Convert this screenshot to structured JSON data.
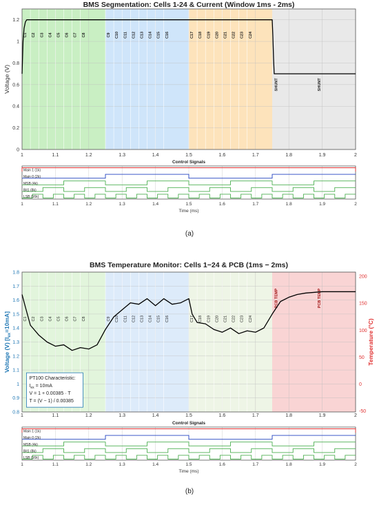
{
  "chart_data": [
    {
      "type": "line",
      "panel_label": "(a)",
      "title": "BMS Segmentation: Cells 1-24 & Current (Window 1ms - 2ms)",
      "xlabel": "",
      "ylabel": "Voltage (V)",
      "xlim": [
        1,
        2
      ],
      "ylim": [
        0,
        1.3
      ],
      "x_ticks": [
        "1",
        "1.1",
        "1.2",
        "1.3",
        "1.4",
        "1.5",
        "1.6",
        "1.7",
        "1.8",
        "1.9",
        "2"
      ],
      "y_ticks": [
        "0",
        "0.2",
        "0.4",
        "0.6",
        "0.8",
        "1",
        "1.2"
      ],
      "grid": true,
      "regions": [
        {
          "x0": 1.0,
          "x1": 1.25,
          "color": "#c9efc3"
        },
        {
          "x0": 1.25,
          "x1": 1.5,
          "color": "#cfe5fa"
        },
        {
          "x0": 1.5,
          "x1": 1.75,
          "color": "#fde3bb"
        },
        {
          "x0": 1.75,
          "x1": 2.0,
          "color": "#e9e9e9"
        }
      ],
      "segment_labels": [
        {
          "x": 1.0125,
          "text": "C1"
        },
        {
          "x": 1.0375,
          "text": "C2"
        },
        {
          "x": 1.0625,
          "text": "C3"
        },
        {
          "x": 1.0875,
          "text": "C4"
        },
        {
          "x": 1.1125,
          "text": "C5"
        },
        {
          "x": 1.1375,
          "text": "C6"
        },
        {
          "x": 1.1625,
          "text": "C7"
        },
        {
          "x": 1.1875,
          "text": "C8"
        },
        {
          "x": 1.2625,
          "text": "C9"
        },
        {
          "x": 1.2875,
          "text": "C10"
        },
        {
          "x": 1.3125,
          "text": "C11"
        },
        {
          "x": 1.3375,
          "text": "C12"
        },
        {
          "x": 1.3625,
          "text": "C13"
        },
        {
          "x": 1.3875,
          "text": "C14"
        },
        {
          "x": 1.4125,
          "text": "C15"
        },
        {
          "x": 1.4375,
          "text": "C16"
        },
        {
          "x": 1.5125,
          "text": "C17"
        },
        {
          "x": 1.5375,
          "text": "C18"
        },
        {
          "x": 1.5625,
          "text": "C19"
        },
        {
          "x": 1.5875,
          "text": "C20"
        },
        {
          "x": 1.6125,
          "text": "C21"
        },
        {
          "x": 1.6375,
          "text": "C22"
        },
        {
          "x": 1.6625,
          "text": "C23"
        },
        {
          "x": 1.6875,
          "text": "C24"
        },
        {
          "x": 1.765,
          "text": "SHUNT"
        },
        {
          "x": 1.895,
          "text": "SHUNT"
        }
      ],
      "series": [
        {
          "color": "#000000",
          "x": [
            1.0,
            1.003,
            1.006,
            1.01,
            1.014,
            1.02,
            1.03,
            1.75,
            1.752,
            1.754,
            1.756,
            2.0
          ],
          "y": [
            0.7,
            1.0,
            1.12,
            1.18,
            1.2,
            1.2,
            1.2,
            1.2,
            1.05,
            0.85,
            0.7,
            0.7
          ]
        }
      ],
      "control_signals": {
        "title": "Control Signals",
        "xlabel": "Time (ms)",
        "x_ticks": [
          "1",
          "1.1",
          "1.2",
          "1.3",
          "1.4",
          "1.5",
          "1.6",
          "1.7",
          "1.8",
          "1.9",
          "2"
        ],
        "signals": [
          {
            "label": "Main 1 (1k)",
            "color": "#e03030",
            "period": 1.0
          },
          {
            "label": "Main 0 (2k)",
            "color": "#2040c0",
            "period": 0.5
          },
          {
            "label": "MSB (4k)",
            "color": "#4caf50",
            "period": 0.25
          },
          {
            "label": "Bit1 (8k)",
            "color": "#4caf50",
            "period": 0.125
          },
          {
            "label": "LSB (16k)",
            "color": "#4caf50",
            "period": 0.0625
          }
        ]
      }
    },
    {
      "type": "line",
      "panel_label": "(b)",
      "title": "BMS Temperature Monitor: Cells 1−24 & PCB (1ms − 2ms)",
      "xlabel": "",
      "ylabel": "Voltage (V) [I",
      "ylabel_sub": "ex",
      "ylabel_tail": "=10mA]",
      "ylabel_color": "#1f77b4",
      "y2label": "Temperature (°C)",
      "y2label_color": "#e03030",
      "xlim": [
        1,
        2
      ],
      "ylim": [
        0.8,
        1.8
      ],
      "y2lim": [
        -51.9,
        207.8
      ],
      "x_ticks": [
        "1",
        "1.1",
        "1.2",
        "1.3",
        "1.4",
        "1.5",
        "1.6",
        "1.7",
        "1.8",
        "1.9",
        "2"
      ],
      "y_ticks": [
        "0.8",
        "0.9",
        "1",
        "1.1",
        "1.2",
        "1.3",
        "1.4",
        "1.5",
        "1.6",
        "1.7",
        "1.8"
      ],
      "y2_ticks": [
        "-50",
        "0",
        "50",
        "100",
        "150",
        "200"
      ],
      "grid": true,
      "regions": [
        {
          "x0": 1.0,
          "x1": 1.25,
          "color": "#e2f5dc"
        },
        {
          "x0": 1.25,
          "x1": 1.5,
          "color": "#ddebfa"
        },
        {
          "x0": 1.5,
          "x1": 1.75,
          "color": "#eef5e6"
        },
        {
          "x0": 1.75,
          "x1": 2.0,
          "color": "#f9d4d4"
        }
      ],
      "segment_labels": [
        {
          "x": 1.0125,
          "text": "C1"
        },
        {
          "x": 1.0375,
          "text": "C2"
        },
        {
          "x": 1.0625,
          "text": "C3"
        },
        {
          "x": 1.0875,
          "text": "C4"
        },
        {
          "x": 1.1125,
          "text": "C5"
        },
        {
          "x": 1.1375,
          "text": "C6"
        },
        {
          "x": 1.1625,
          "text": "C7"
        },
        {
          "x": 1.1875,
          "text": "C8"
        },
        {
          "x": 1.2625,
          "text": "C9"
        },
        {
          "x": 1.2875,
          "text": "C10"
        },
        {
          "x": 1.3125,
          "text": "C11"
        },
        {
          "x": 1.3375,
          "text": "C12"
        },
        {
          "x": 1.3625,
          "text": "C13"
        },
        {
          "x": 1.3875,
          "text": "C14"
        },
        {
          "x": 1.4125,
          "text": "C15"
        },
        {
          "x": 1.4375,
          "text": "C16"
        },
        {
          "x": 1.5125,
          "text": "C17"
        },
        {
          "x": 1.5375,
          "text": "C18"
        },
        {
          "x": 1.5625,
          "text": "C19"
        },
        {
          "x": 1.5875,
          "text": "C20"
        },
        {
          "x": 1.6125,
          "text": "C21"
        },
        {
          "x": 1.6375,
          "text": "C22"
        },
        {
          "x": 1.6625,
          "text": "C23"
        },
        {
          "x": 1.6875,
          "text": "C24"
        }
      ],
      "pcb_labels": [
        {
          "x": 1.765,
          "text": "PCB TEMP"
        },
        {
          "x": 1.895,
          "text": "PCB TEMP"
        }
      ],
      "pcb_label_color": "#a01010",
      "series": [
        {
          "color": "#000000",
          "x": [
            1.0,
            1.01,
            1.025,
            1.05,
            1.075,
            1.1,
            1.125,
            1.15,
            1.175,
            1.2,
            1.225,
            1.25,
            1.275,
            1.3,
            1.325,
            1.35,
            1.375,
            1.4,
            1.425,
            1.45,
            1.475,
            1.5,
            1.51,
            1.525,
            1.55,
            1.575,
            1.6,
            1.625,
            1.65,
            1.675,
            1.7,
            1.725,
            1.75,
            1.775,
            1.8,
            1.825,
            1.85,
            1.875,
            1.9,
            1.95,
            2.0
          ],
          "y": [
            1.64,
            1.55,
            1.42,
            1.35,
            1.3,
            1.27,
            1.28,
            1.24,
            1.26,
            1.25,
            1.28,
            1.39,
            1.48,
            1.53,
            1.58,
            1.57,
            1.61,
            1.56,
            1.61,
            1.57,
            1.58,
            1.61,
            1.5,
            1.44,
            1.43,
            1.39,
            1.37,
            1.4,
            1.36,
            1.38,
            1.37,
            1.4,
            1.5,
            1.59,
            1.62,
            1.64,
            1.65,
            1.655,
            1.66,
            1.66,
            1.66
          ]
        }
      ],
      "annotation_box": {
        "line1": "PT100 Characteristic:",
        "line2_prefix": "I",
        "line2_sub": "ex",
        "line2_suffix": " = 10mA",
        "line3": "V = 1 + 0.00385 · T",
        "line4": "T = (V − 1) / 0.00385"
      },
      "control_signals": {
        "title": "Control Signals",
        "xlabel": "Time (ms)",
        "x_ticks": [
          "1",
          "1.1",
          "1.2",
          "1.3",
          "1.4",
          "1.5",
          "1.6",
          "1.7",
          "1.8",
          "1.9",
          "2"
        ],
        "signals": [
          {
            "label": "Main 1 (1k)",
            "color": "#e03030",
            "period": 1.0
          },
          {
            "label": "Main 0 (2k)",
            "color": "#2040c0",
            "period": 0.5
          },
          {
            "label": "MSB (4k)",
            "color": "#4caf50",
            "period": 0.25
          },
          {
            "label": "Bit1 (8k)",
            "color": "#4caf50",
            "period": 0.125
          },
          {
            "label": "LSB (16k)",
            "color": "#4caf50",
            "period": 0.0625
          }
        ]
      }
    }
  ]
}
